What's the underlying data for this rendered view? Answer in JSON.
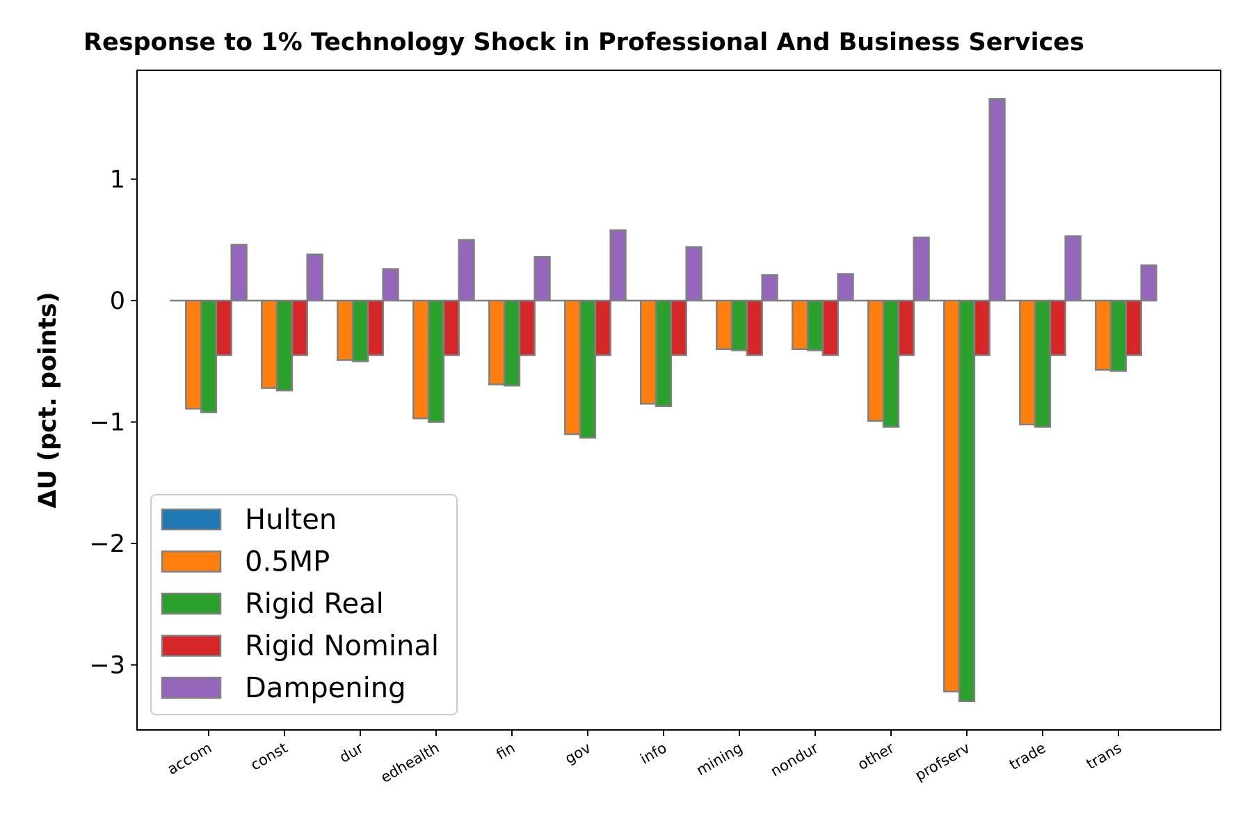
{
  "chart_data": {
    "type": "bar",
    "title": "Response to 1% Technology Shock in Professional And Business Services",
    "xlabel": "",
    "ylabel": "ΔU  (pct. points)",
    "ylim": [
      -3.55,
      1.9
    ],
    "yticks": [
      1,
      0,
      -1,
      -2,
      -3
    ],
    "ytick_labels": [
      "1",
      "0",
      "−1",
      "−2",
      "−3"
    ],
    "grid": false,
    "legend_position": "lower-left",
    "categories": [
      "accom",
      "const",
      "dur",
      "edhealth",
      "fin",
      "gov",
      "info",
      "mining",
      "nondur",
      "other",
      "profserv",
      "trade",
      "trans"
    ],
    "series": [
      {
        "name": "Hulten",
        "color": "#1f77b4",
        "values": [
          0,
          0,
          0,
          0,
          0,
          0,
          0,
          0,
          0,
          0,
          0,
          0,
          0
        ]
      },
      {
        "name": "0.5MP",
        "color": "#ff7f0e",
        "values": [
          -0.89,
          -0.72,
          -0.49,
          -0.97,
          -0.69,
          -1.1,
          -0.85,
          -0.4,
          -0.4,
          -0.99,
          -3.22,
          -1.02,
          -0.57
        ]
      },
      {
        "name": "Rigid Real",
        "color": "#2ca02c",
        "values": [
          -0.92,
          -0.74,
          -0.5,
          -1.0,
          -0.7,
          -1.13,
          -0.87,
          -0.41,
          -0.41,
          -1.04,
          -3.3,
          -1.04,
          -0.58
        ]
      },
      {
        "name": "Rigid Nominal",
        "color": "#d62728",
        "values": [
          -0.45,
          -0.45,
          -0.45,
          -0.45,
          -0.45,
          -0.45,
          -0.45,
          -0.45,
          -0.45,
          -0.45,
          -0.45,
          -0.45,
          -0.45
        ]
      },
      {
        "name": "Dampening",
        "color": "#9467bd",
        "values": [
          0.46,
          0.38,
          0.26,
          0.5,
          0.36,
          0.58,
          0.44,
          0.21,
          0.22,
          0.52,
          1.66,
          0.53,
          0.29
        ]
      }
    ],
    "bar_edge_color": "#808080"
  }
}
